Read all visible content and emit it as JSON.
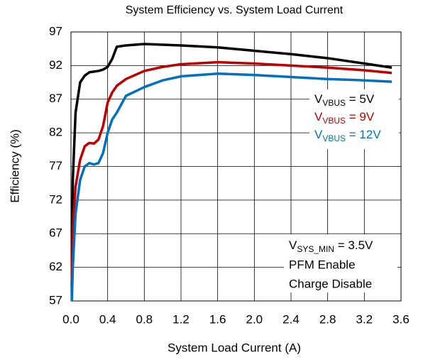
{
  "chart_data": {
    "type": "line",
    "title": "System Efficiency vs. System Load Current",
    "x_label": "System Load Current (A)",
    "y_label": "Efficiency (%)",
    "x": [
      0.01,
      0.02,
      0.05,
      0.1,
      0.15,
      0.2,
      0.25,
      0.3,
      0.35,
      0.4,
      0.45,
      0.5,
      0.6,
      0.8,
      1.0,
      1.2,
      1.6,
      2.0,
      2.4,
      2.8,
      3.2,
      3.5
    ],
    "series": [
      {
        "name": "VVBUS = 5V",
        "color": "#000000",
        "values": [
          62,
          75,
          85,
          89.5,
          90.5,
          91,
          91.1,
          91.2,
          91.4,
          91.8,
          93,
          94.8,
          95,
          95.2,
          95.1,
          95,
          94.7,
          94.2,
          93.7,
          93.1,
          92.3,
          91.7
        ]
      },
      {
        "name": "VVBUS = 9V",
        "color": "#c00000",
        "values": [
          60,
          68,
          74,
          78,
          80,
          80.5,
          80.4,
          81,
          83,
          86.5,
          88,
          89,
          90,
          91.2,
          91.8,
          92.2,
          92.5,
          92.3,
          92,
          91.7,
          91.3,
          90.9
        ]
      },
      {
        "name": "VVBUS = 12V",
        "color": "#0070c0",
        "values": [
          57,
          62,
          70,
          75,
          77,
          77.5,
          77.3,
          77.5,
          79,
          82,
          84,
          85,
          87.5,
          88.8,
          89.8,
          90.4,
          90.8,
          90.6,
          90.3,
          90,
          89.8,
          89.6
        ]
      }
    ],
    "annotations": [
      "VSYS_MIN = 3.5V",
      "PFM Enable",
      "Charge Disable"
    ],
    "xlim": [
      0,
      3.6
    ],
    "xticks": [
      {
        "value": 0,
        "label": "0.0"
      },
      0.4,
      0.8,
      1.2,
      1.6,
      {
        "value": 2,
        "label": "2.0"
      },
      2.4,
      2.8,
      3.2,
      3.6
    ],
    "ylim": [
      57,
      97
    ],
    "yticks": [
      57,
      62,
      67,
      72,
      77,
      82,
      87,
      92,
      97
    ],
    "grid": true
  }
}
